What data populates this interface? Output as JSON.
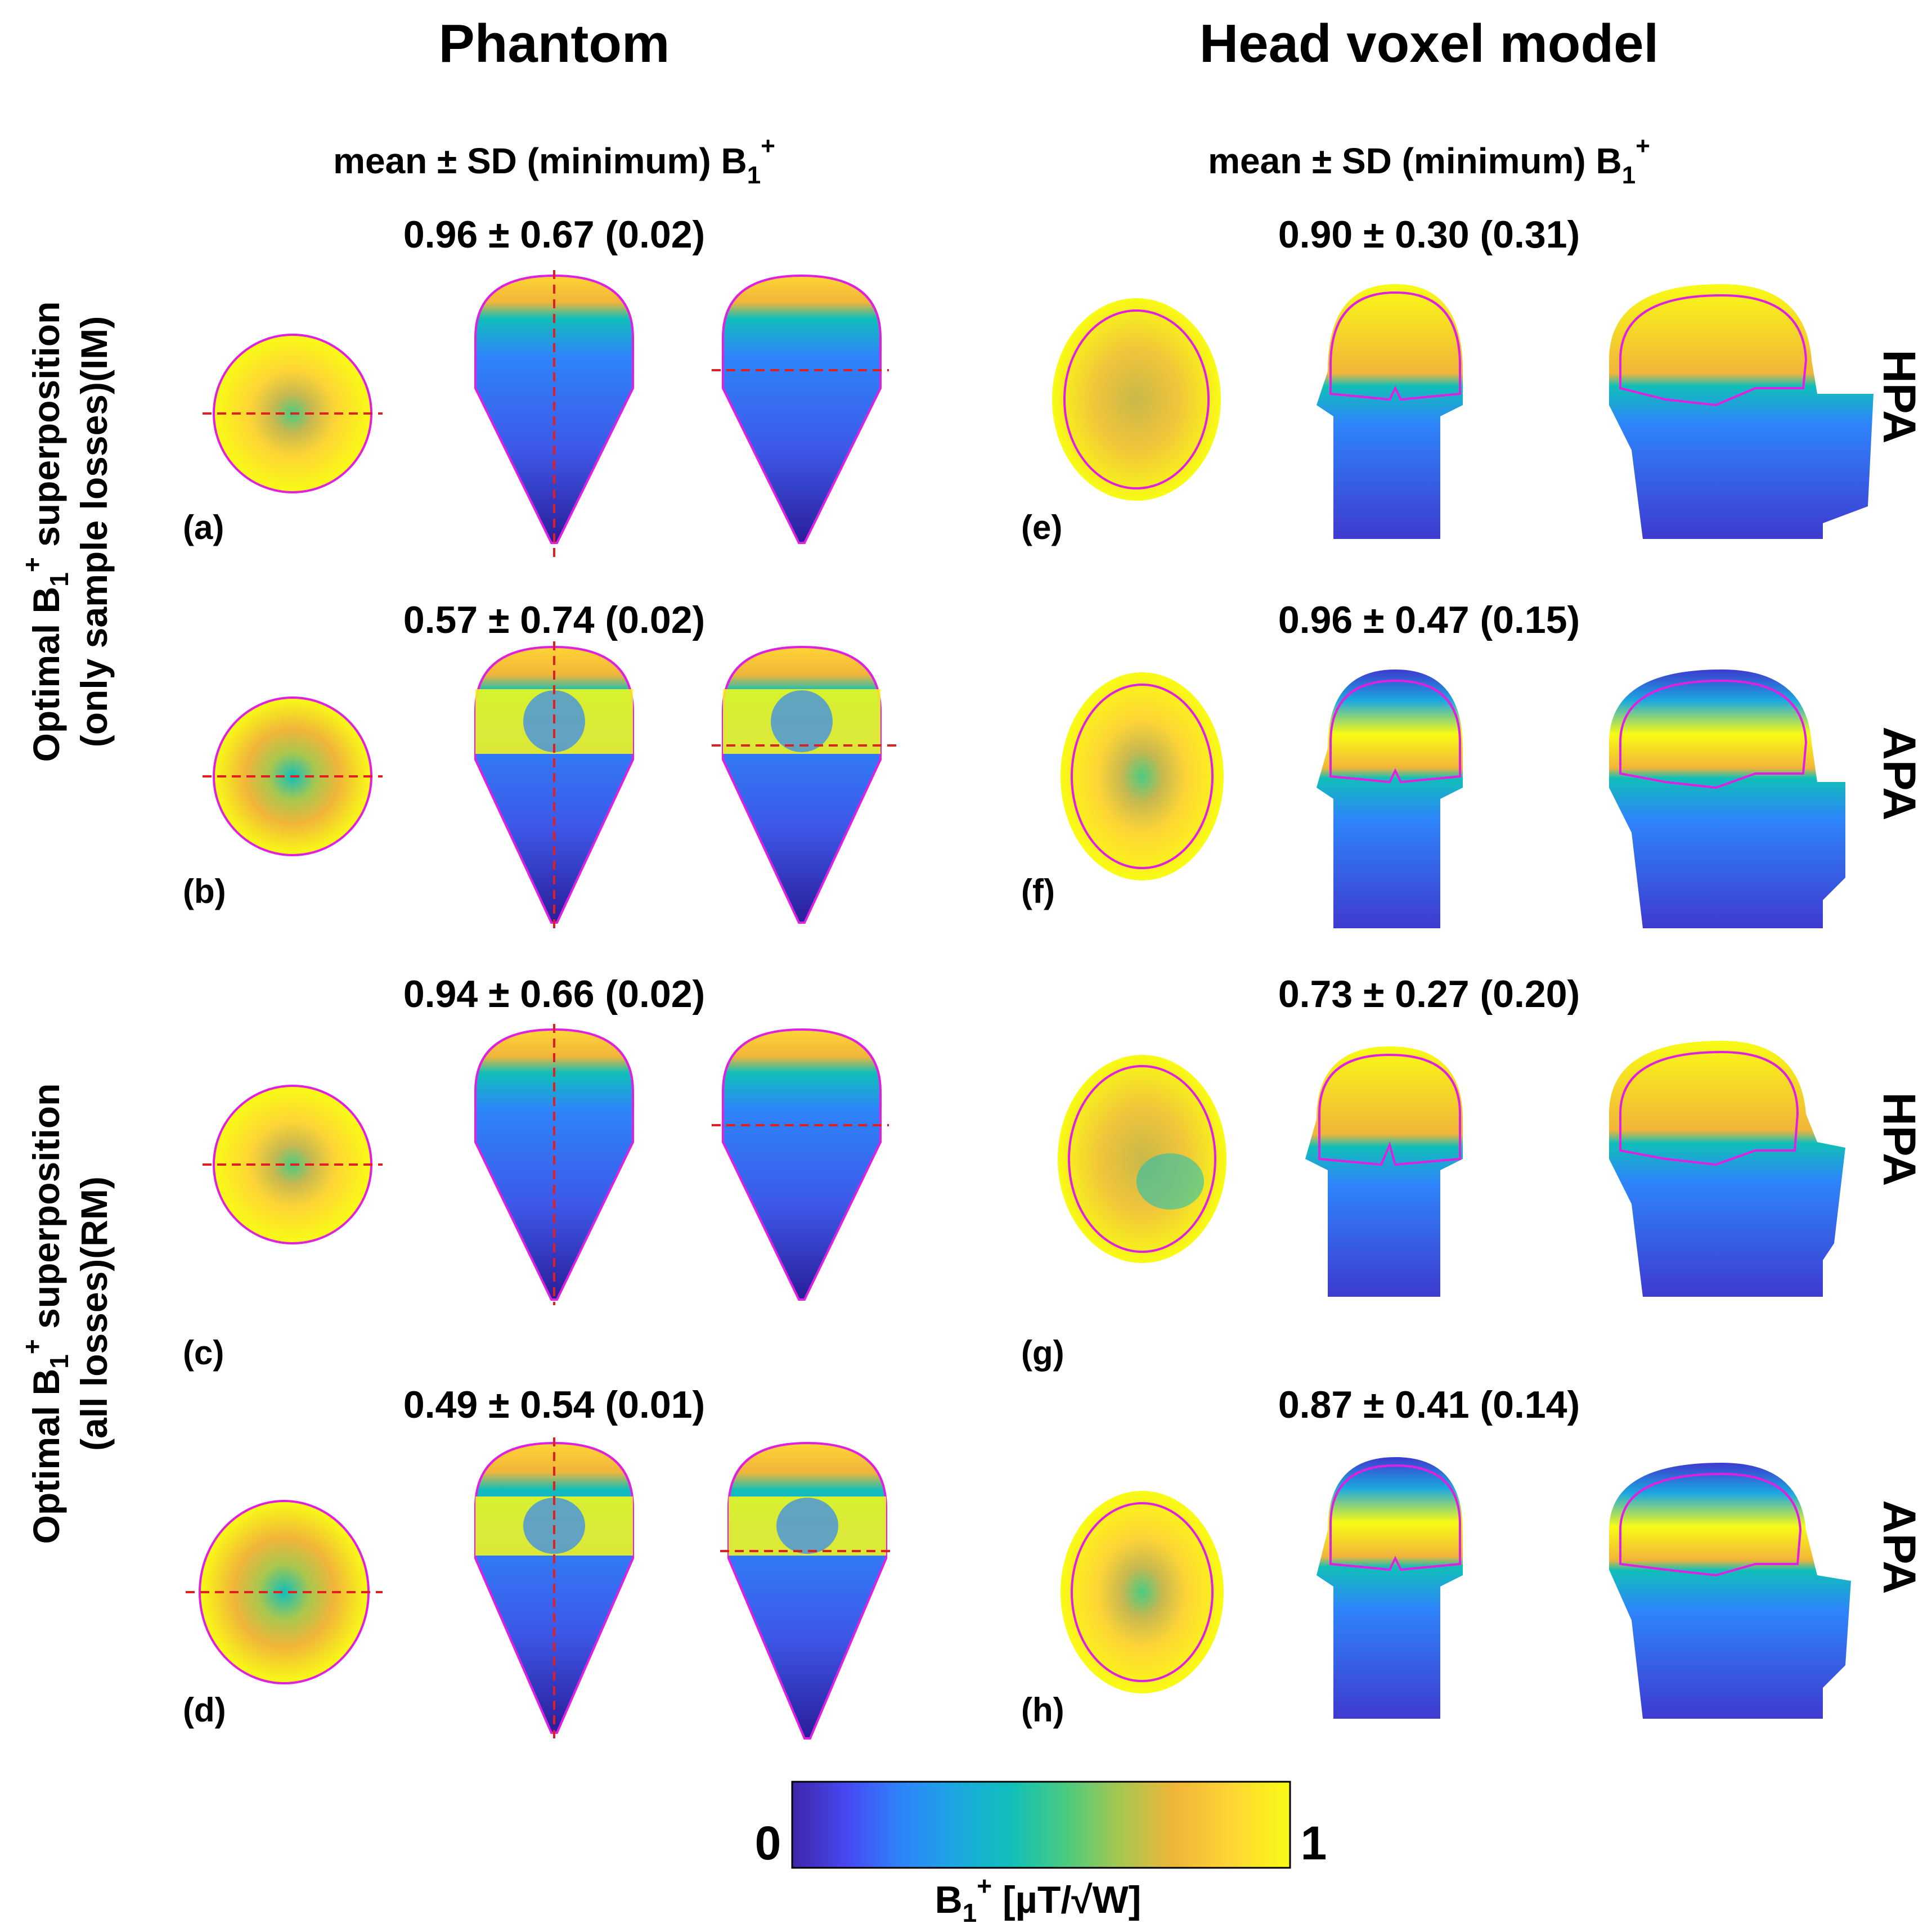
{
  "columns": {
    "phantom": "Phantom",
    "head": "Head voxel model"
  },
  "subheader": {
    "text": "mean  ±  SD  (minimum) B",
    "sub": "1",
    "sup": "+"
  },
  "rows": [
    {
      "panel_phantom": "(a)",
      "panel_head": "(e)",
      "stat_phantom": "0.96 ± 0.67 (0.02)",
      "stat_head": "0.90 ± 0.30 (0.31)",
      "array": "HPA"
    },
    {
      "panel_phantom": "(b)",
      "panel_head": "(f)",
      "stat_phantom": "0.57 ± 0.74 (0.02)",
      "stat_head": "0.96 ± 0.47 (0.15)",
      "array": "APA"
    },
    {
      "panel_phantom": "(c)",
      "panel_head": "(g)",
      "stat_phantom": "0.94 ± 0.66 (0.02)",
      "stat_head": "0.73 ± 0.27 (0.20)",
      "array": "HPA"
    },
    {
      "panel_phantom": "(d)",
      "panel_head": "(h)",
      "stat_phantom": "0.49 ± 0.54 (0.01)",
      "stat_head": "0.87 ± 0.41 (0.14)",
      "array": "APA"
    }
  ],
  "side_labels": {
    "im": {
      "line1_pre": "Optimal B",
      "line1_sub": "1",
      "line1_sup": "+",
      "line1_post": " superposition",
      "line2": "(only sample losses)(IM)"
    },
    "rm": {
      "line1_pre": "Optimal B",
      "line1_sub": "1",
      "line1_sup": "+",
      "line1_post": " superposition",
      "line2": "(all losses)(RM)"
    }
  },
  "colorbar": {
    "min_label": "0",
    "max_label": "1",
    "label_pre": "B",
    "label_sub": "1",
    "label_sup": "+",
    "label_post": " [µT/√W]",
    "colors": [
      "#3e26a8",
      "#4748f2",
      "#2e84fb",
      "#1ba8e0",
      "#10bfb9",
      "#4bcb80",
      "#a8c74e",
      "#f1b53a",
      "#fed535",
      "#f9fb15"
    ]
  },
  "colors": {
    "outline": "#e020e0",
    "marker_line": "#e02020"
  }
}
